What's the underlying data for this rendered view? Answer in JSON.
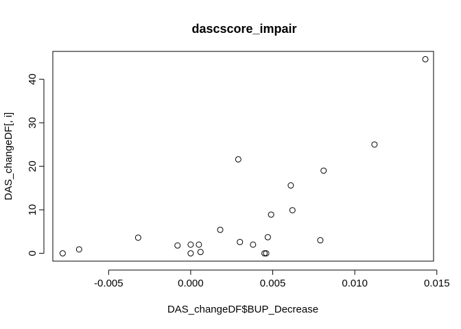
{
  "chart_data": {
    "type": "scatter",
    "title": "dascscore_impair",
    "xlabel": "DAS_changeDF$BUP_Decrease",
    "ylabel": "DAS_changeDF[, i]",
    "xlim": [
      -0.0084,
      0.0148
    ],
    "ylim": [
      -1.8,
      46.4
    ],
    "x_ticks": [
      -0.005,
      0.0,
      0.005,
      0.01,
      0.015
    ],
    "x_tick_labels": [
      "-0.005",
      "0.000",
      "0.005",
      "0.010",
      "0.015"
    ],
    "y_ticks": [
      0,
      10,
      20,
      30,
      40
    ],
    "y_tick_labels": [
      "0",
      "10",
      "20",
      "30",
      "40"
    ],
    "grid": false,
    "marker": "open-circle",
    "points": [
      {
        "x": -0.0078,
        "y": 0.0
      },
      {
        "x": -0.0068,
        "y": 0.9
      },
      {
        "x": -0.0032,
        "y": 3.6
      },
      {
        "x": -0.0008,
        "y": 1.8
      },
      {
        "x": 0.0,
        "y": 2.0
      },
      {
        "x": 0.0,
        "y": 0.0
      },
      {
        "x": 0.0005,
        "y": 2.0
      },
      {
        "x": 0.0006,
        "y": 0.3
      },
      {
        "x": 0.0018,
        "y": 5.4
      },
      {
        "x": 0.0029,
        "y": 21.6
      },
      {
        "x": 0.003,
        "y": 2.6
      },
      {
        "x": 0.0038,
        "y": 2.0
      },
      {
        "x": 0.0045,
        "y": 0.0
      },
      {
        "x": 0.0046,
        "y": 0.0
      },
      {
        "x": 0.0047,
        "y": 3.7
      },
      {
        "x": 0.0049,
        "y": 8.9
      },
      {
        "x": 0.0061,
        "y": 15.6
      },
      {
        "x": 0.0062,
        "y": 9.9
      },
      {
        "x": 0.0079,
        "y": 3.0
      },
      {
        "x": 0.0081,
        "y": 19.0
      },
      {
        "x": 0.0112,
        "y": 25.0
      },
      {
        "x": 0.0143,
        "y": 44.6
      }
    ]
  }
}
